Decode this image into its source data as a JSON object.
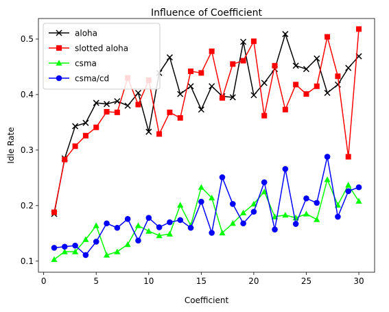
{
  "chart_data": {
    "type": "line",
    "title": "Influence of Coefficient",
    "xlabel": "Coefficient",
    "ylabel": "Idle Rate",
    "xlim": [
      -0.5,
      31.5
    ],
    "ylim": [
      0.08,
      0.537
    ],
    "xticks": [
      0,
      5,
      10,
      15,
      20,
      25,
      30
    ],
    "yticks": [
      0.1,
      0.2,
      0.3,
      0.4,
      0.5
    ],
    "legend_position": "top-left",
    "grid": false,
    "x": [
      1,
      2,
      3,
      4,
      5,
      6,
      7,
      8,
      9,
      10,
      11,
      12,
      13,
      14,
      15,
      16,
      17,
      18,
      19,
      20,
      21,
      22,
      23,
      24,
      25,
      26,
      27,
      28,
      29,
      30
    ],
    "series": [
      {
        "name": "aloha",
        "color": "#000000",
        "marker": "x",
        "values": [
          0.185,
          0.285,
          0.343,
          0.349,
          0.385,
          0.383,
          0.388,
          0.38,
          0.403,
          0.333,
          0.439,
          0.467,
          0.401,
          0.415,
          0.373,
          0.415,
          0.397,
          0.395,
          0.495,
          0.399,
          0.421,
          0.446,
          0.509,
          0.452,
          0.446,
          0.465,
          0.403,
          0.418,
          0.448,
          0.469
        ]
      },
      {
        "name": "slotted aloha",
        "color": "#ff0000",
        "marker": "square",
        "values": [
          0.188,
          0.283,
          0.307,
          0.326,
          0.341,
          0.369,
          0.368,
          0.43,
          0.382,
          0.426,
          0.329,
          0.368,
          0.358,
          0.442,
          0.439,
          0.478,
          0.394,
          0.455,
          0.461,
          0.496,
          0.362,
          0.452,
          0.373,
          0.418,
          0.401,
          0.415,
          0.504,
          0.433,
          0.288,
          0.518
        ]
      },
      {
        "name": "csma",
        "color": "#00ff00",
        "marker": "triangle",
        "values": [
          0.103,
          0.117,
          0.117,
          0.139,
          0.164,
          0.111,
          0.117,
          0.13,
          0.164,
          0.154,
          0.146,
          0.149,
          0.201,
          0.164,
          0.233,
          0.214,
          0.151,
          0.168,
          0.187,
          0.203,
          0.225,
          0.18,
          0.183,
          0.178,
          0.185,
          0.175,
          0.247,
          0.201,
          0.237,
          0.208
        ]
      },
      {
        "name": "csma/cd",
        "color": "#0000ff",
        "marker": "circle",
        "values": [
          0.124,
          0.126,
          0.128,
          0.111,
          0.135,
          0.168,
          0.16,
          0.176,
          0.137,
          0.178,
          0.161,
          0.17,
          0.174,
          0.16,
          0.207,
          0.151,
          0.251,
          0.203,
          0.168,
          0.189,
          0.242,
          0.157,
          0.266,
          0.167,
          0.213,
          0.205,
          0.288,
          0.18,
          0.226,
          0.233
        ]
      }
    ]
  }
}
